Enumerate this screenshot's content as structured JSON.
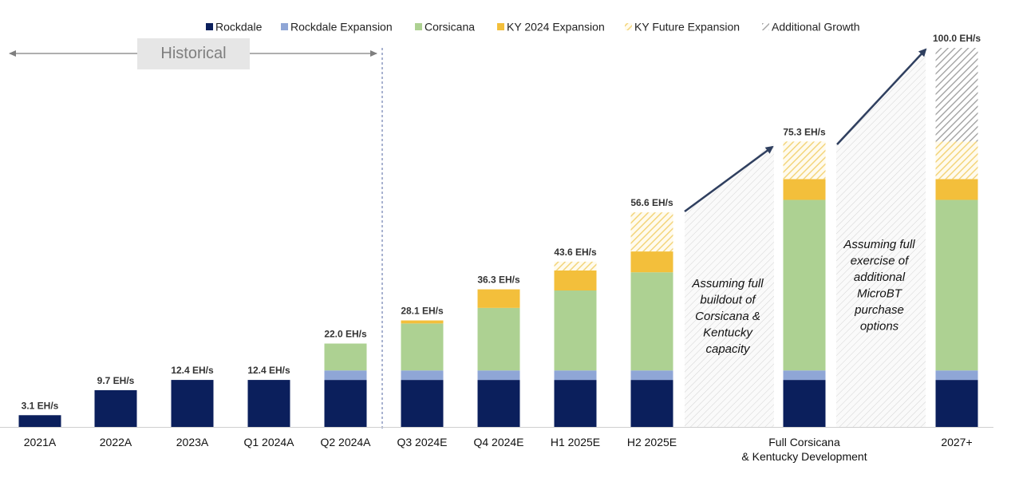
{
  "colors": {
    "rockdale": "#0b1f5c",
    "rockdale_expansion": "#8fa6d6",
    "corsicana": "#add192",
    "ky_2024": "#f3bf3b",
    "ky_future": "#f3d57c",
    "additional": "#9d9d9d",
    "arrow": "#2f3f5f",
    "historical_box": "#e6e6e6",
    "historical_text": "#7f7f7f",
    "divider": "#6f7fb0"
  },
  "chart_data": {
    "type": "bar",
    "stacked": true,
    "unit": "EH/s",
    "ylim": [
      0,
      105
    ],
    "categories": [
      "2021A",
      "2022A",
      "2023A",
      "Q1 2024A",
      "Q2 2024A",
      "Q3 2024E",
      "Q4 2024E",
      "H1 2025E",
      "H2 2025E",
      "Full Corsicana\n& Kentucky Development",
      "2027+"
    ],
    "category_lines": [
      [
        "2021A"
      ],
      [
        "2022A"
      ],
      [
        "2023A"
      ],
      [
        "Q1 2024A"
      ],
      [
        "Q2 2024A"
      ],
      [
        "Q3 2024E"
      ],
      [
        "Q4 2024E"
      ],
      [
        "H1 2025E"
      ],
      [
        "H2 2025E"
      ],
      [
        "Full Corsicana",
        "& Kentucky Development"
      ],
      [
        "2027+"
      ]
    ],
    "series": [
      {
        "key": "rockdale",
        "name": "Rockdale",
        "pattern": "solid",
        "values": [
          3.1,
          9.7,
          12.4,
          12.4,
          12.4,
          12.4,
          12.4,
          12.4,
          12.4,
          12.4,
          12.4
        ]
      },
      {
        "key": "rockdale_expansion",
        "name": "Rockdale Expansion",
        "pattern": "solid",
        "values": [
          0,
          0,
          0,
          0,
          2.5,
          2.5,
          2.5,
          2.5,
          2.5,
          2.5,
          2.5
        ]
      },
      {
        "key": "corsicana",
        "name": "Corsicana",
        "pattern": "solid",
        "values": [
          0,
          0,
          0,
          0,
          7.1,
          12.4,
          16.5,
          21.1,
          25.9,
          45.0,
          45.0
        ]
      },
      {
        "key": "ky_2024",
        "name": "KY 2024 Expansion",
        "pattern": "solid",
        "values": [
          0,
          0,
          0,
          0,
          0,
          0.8,
          4.9,
          5.3,
          5.5,
          5.5,
          5.5
        ]
      },
      {
        "key": "ky_future",
        "name": "KY Future Expansion",
        "pattern": "hatch",
        "values": [
          0,
          0,
          0,
          0,
          0,
          0,
          0,
          2.3,
          10.3,
          9.9,
          9.9
        ]
      },
      {
        "key": "additional",
        "name": "Additional Growth",
        "pattern": "hatch",
        "values": [
          0,
          0,
          0,
          0,
          0,
          0,
          0,
          0,
          0,
          0,
          24.7
        ]
      }
    ],
    "totals": [
      "3.1 EH/s",
      "9.7 EH/s",
      "12.4 EH/s",
      "12.4 EH/s",
      "22.0 EH/s",
      "28.1 EH/s",
      "36.3 EH/s",
      "43.6 EH/s",
      "56.6 EH/s",
      "75.3 EH/s",
      "100.0 EH/s"
    ],
    "historical_label": "Historical",
    "annotations": [
      {
        "lines": [
          "Assuming full",
          "buildout of",
          "Corsicana &",
          "Kentucky",
          "capacity"
        ]
      },
      {
        "lines": [
          "Assuming full",
          "exercise of",
          "additional",
          "MicroBT",
          "purchase",
          "options"
        ]
      }
    ],
    "legend_position": "top"
  }
}
